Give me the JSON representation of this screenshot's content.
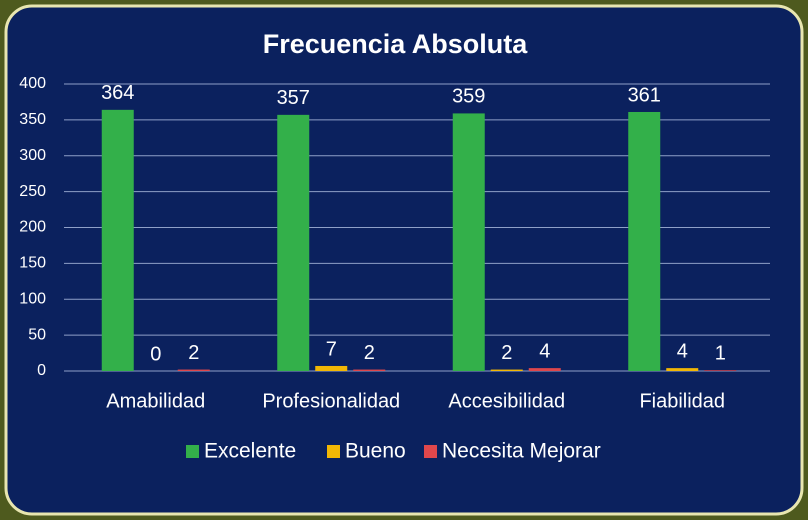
{
  "chart_data": {
    "type": "bar",
    "title": "Frecuencia Absoluta",
    "categories": [
      "Amabilidad",
      "Profesionalidad",
      "Accesibilidad",
      "Fiabilidad"
    ],
    "series": [
      {
        "name": "Excelente",
        "color": "#33b04a",
        "values": [
          364,
          357,
          359,
          361
        ]
      },
      {
        "name": "Bueno",
        "color": "#f2b705",
        "values": [
          0,
          7,
          2,
          4
        ]
      },
      {
        "name": "Necesita Mejorar",
        "color": "#e0474c",
        "values": [
          2,
          2,
          4,
          1
        ]
      }
    ],
    "ylim": [
      0,
      400
    ],
    "yticks": [
      0,
      50,
      100,
      150,
      200,
      250,
      300,
      350,
      400
    ],
    "grid": true,
    "legend": "bottom"
  }
}
